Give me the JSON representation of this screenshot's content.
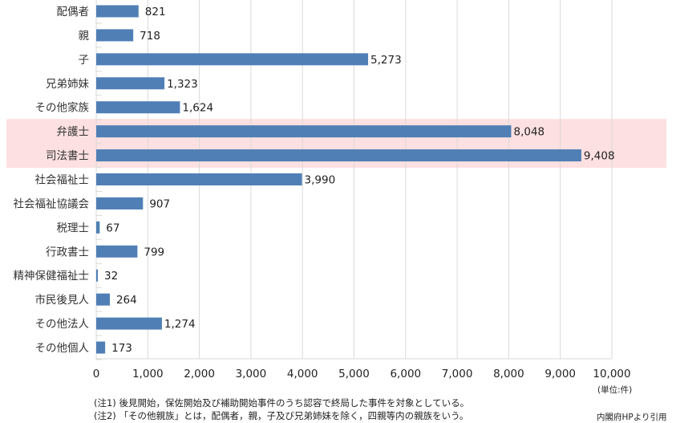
{
  "chart_data": {
    "type": "bar",
    "orientation": "horizontal",
    "categories": [
      "配偶者",
      "親",
      "子",
      "兄弟姉妹",
      "その他家族",
      "弁護士",
      "司法書士",
      "社会福祉士",
      "社会福祉協議会",
      "税理士",
      "行政書士",
      "精神保健福祉士",
      "市民後見人",
      "その他法人",
      "その他個人"
    ],
    "values": [
      821,
      718,
      5273,
      1323,
      1624,
      8048,
      9408,
      3990,
      907,
      67,
      799,
      32,
      264,
      1274,
      173
    ],
    "value_labels": [
      "821",
      "718",
      "5,273",
      "1,323",
      "1,624",
      "8,048",
      "9,408",
      "3,990",
      "907",
      "67",
      "799",
      "32",
      "264",
      "1,274",
      "173"
    ],
    "highlighted_categories": [
      "弁護士",
      "司法書士"
    ],
    "xlim": [
      0,
      10000
    ],
    "xticks": [
      0,
      1000,
      2000,
      3000,
      4000,
      5000,
      6000,
      7000,
      8000,
      9000,
      10000
    ],
    "xtick_labels": [
      "0",
      "1,000",
      "2,000",
      "3,000",
      "4,000",
      "5,000",
      "6,000",
      "7,000",
      "8,000",
      "9,000",
      "10,000"
    ],
    "grid": true,
    "unit_label": "(単位:件)",
    "bar_color": "#4f7fb5",
    "highlight_color": "#fde0e1",
    "grid_color": "#d9d9d9"
  },
  "notes": [
    "(注1) 後見開始，保佐開始及び補助開始事件のうち認容で終局した事件を対象としている。",
    "(注2) 「その他親族」とは，配偶者，親，子及び兄弟姉妹を除く，四親等内の親族をいう。"
  ],
  "source": "内閣府HPより引用"
}
